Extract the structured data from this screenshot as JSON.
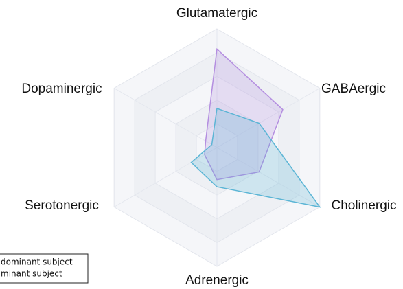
{
  "chart_data": {
    "type": "radar",
    "categories": [
      "Glutamatergic",
      "GABAergic",
      "Cholinergic",
      "Adrenergic",
      "Serotonergic",
      "Dopaminergic"
    ],
    "series": [
      {
        "name": "dominant subject",
        "color": "#b48ee0",
        "values": [
          0.83,
          0.64,
          0.41,
          0.27,
          0.12,
          0.11
        ]
      },
      {
        "name": "minant subject",
        "color": "#5bb5d5",
        "values": [
          0.33,
          0.41,
          1.0,
          0.33,
          0.25,
          0.05
        ]
      }
    ],
    "rlim": [
      0,
      1
    ],
    "rticks": [
      0.2,
      0.4,
      0.6,
      0.8,
      1.0
    ],
    "grid": true
  }
}
